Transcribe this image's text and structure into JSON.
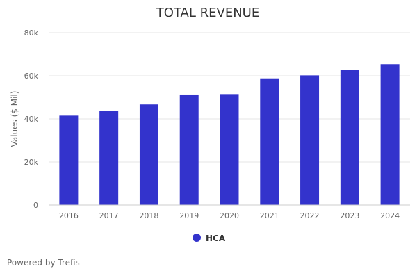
{
  "chart_data": {
    "type": "bar",
    "title": "TOTAL REVENUE",
    "xlabel": "",
    "ylabel": "Values ($ Mil)",
    "categories": [
      "2016",
      "2017",
      "2018",
      "2019",
      "2020",
      "2021",
      "2022",
      "2023",
      "2024"
    ],
    "series": [
      {
        "name": "HCA",
        "color": "#3333cc",
        "values": [
          41500,
          43600,
          46700,
          51300,
          51500,
          58800,
          60200,
          62800,
          65400
        ]
      }
    ],
    "ylim": [
      0,
      80000
    ],
    "yticks": [
      0,
      20000,
      40000,
      60000,
      80000
    ],
    "ytick_labels": [
      "0",
      "20k",
      "40k",
      "60k",
      "80k"
    ],
    "grid": true,
    "legend_position": "bottom-center"
  },
  "footer": {
    "credit": "Powered by Trefis"
  }
}
